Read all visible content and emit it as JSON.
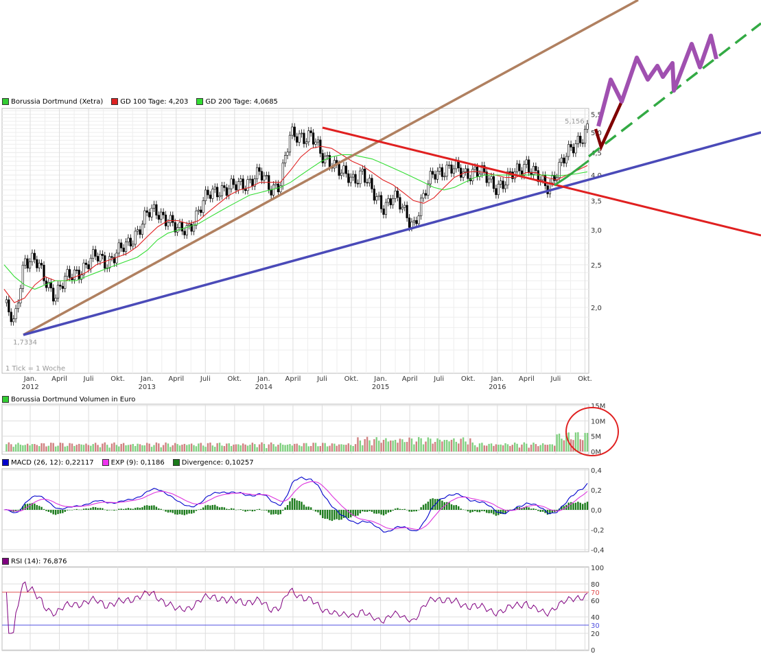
{
  "colors": {
    "price_legend": "#33cc33",
    "gd100": "#e02020",
    "gd200": "#33dd33",
    "trend_blue": "#4a4ab8",
    "trend_red": "#e02020",
    "trend_brown": "#b08060",
    "forecast_purple": "#a050b0",
    "forecast_darkred": "#800000",
    "forecast_green": "#33aa44",
    "volume_up": "#80d080",
    "volume_down": "#d08080",
    "macd": "#0000cc",
    "exp": "#dd33dd",
    "divergence": "#1a7a1a",
    "rsi": "#800080",
    "rsi_70": "#e05050",
    "rsi_30": "#5050e0",
    "circle": "#e02020",
    "grid": "#dddddd"
  },
  "price_panel": {
    "legend": [
      {
        "label": "Borussia Dortmund (Xetra)",
        "color": "#33cc33"
      },
      {
        "label": "GD 100 Tage: 4,203",
        "color": "#dd2222"
      },
      {
        "label": "GD 200 Tage: 4,0685",
        "color": "#33dd33"
      }
    ],
    "high_label": "5,156",
    "low_label": "1,7334",
    "tick_note": "1 Tick = 1 Woche",
    "y_ticks": [
      "5,5",
      "5,0",
      "4,5",
      "4,0",
      "3,5",
      "3,0",
      "2,5",
      "2,0"
    ],
    "x_ticks": [
      {
        "label": "Jan.",
        "year": "2012"
      },
      {
        "label": "April",
        "year": ""
      },
      {
        "label": "Juli",
        "year": ""
      },
      {
        "label": "Okt.",
        "year": ""
      },
      {
        "label": "Jan.",
        "year": "2013"
      },
      {
        "label": "April",
        "year": ""
      },
      {
        "label": "Juli",
        "year": ""
      },
      {
        "label": "Okt.",
        "year": ""
      },
      {
        "label": "Jan.",
        "year": "2014"
      },
      {
        "label": "April",
        "year": ""
      },
      {
        "label": "Juli",
        "year": ""
      },
      {
        "label": "Okt.",
        "year": ""
      },
      {
        "label": "Jan.",
        "year": "2015"
      },
      {
        "label": "April",
        "year": ""
      },
      {
        "label": "Juli",
        "year": ""
      },
      {
        "label": "Okt.",
        "year": ""
      },
      {
        "label": "Jan.",
        "year": "2016"
      },
      {
        "label": "April",
        "year": ""
      },
      {
        "label": "Juli",
        "year": ""
      },
      {
        "label": "Okt.",
        "year": ""
      }
    ]
  },
  "volume_panel": {
    "legend": [
      {
        "label": "Borussia Dortmund Volumen in Euro",
        "color": "#33cc33"
      }
    ],
    "y_ticks": [
      "15M",
      "10M",
      "5M",
      "0M"
    ]
  },
  "macd_panel": {
    "legend": [
      {
        "label": "MACD (26, 12): 0,22117",
        "color": "#0000cc"
      },
      {
        "label": "EXP (9): 0,1186",
        "color": "#ee33ee"
      },
      {
        "label": "Divergence: 0,10257",
        "color": "#1a7a1a"
      }
    ],
    "y_ticks": [
      "0,4",
      "0,2",
      "0,0",
      "-0,2",
      "-0,4"
    ]
  },
  "rsi_panel": {
    "legend": [
      {
        "label": "RSI (14): 76,876",
        "color": "#800080"
      }
    ],
    "y_ticks": [
      "100",
      "80",
      "70",
      "60",
      "40",
      "30",
      "20",
      "0"
    ]
  },
  "chart_data": {
    "type": "line",
    "title": "Borussia Dortmund (Xetra)",
    "x": [
      "2012-01",
      "2012-02",
      "2012-03",
      "2012-04",
      "2012-05",
      "2012-06",
      "2012-07",
      "2012-08",
      "2012-09",
      "2012-10",
      "2012-11",
      "2012-12",
      "2013-01",
      "2013-02",
      "2013-03",
      "2013-04",
      "2013-05",
      "2013-06",
      "2013-07",
      "2013-08",
      "2013-09",
      "2013-10",
      "2013-11",
      "2013-12",
      "2014-01",
      "2014-02",
      "2014-03",
      "2014-04",
      "2014-05",
      "2014-06",
      "2014-07",
      "2014-08",
      "2014-09",
      "2014-10",
      "2014-11",
      "2014-12",
      "2015-01",
      "2015-02",
      "2015-03",
      "2015-04",
      "2015-05",
      "2015-06",
      "2015-07",
      "2015-08",
      "2015-09",
      "2015-10",
      "2015-11",
      "2015-12",
      "2016-01",
      "2016-02",
      "2016-03",
      "2016-04",
      "2016-05",
      "2016-06",
      "2016-07",
      "2016-08",
      "2016-09",
      "2016-10"
    ],
    "series": [
      {
        "name": "Borussia Dortmund (Xetra)",
        "values": [
          2.05,
          1.8,
          2.6,
          2.55,
          2.3,
          2.15,
          2.3,
          2.4,
          2.5,
          2.6,
          2.55,
          2.65,
          2.75,
          3.0,
          3.25,
          3.3,
          3.2,
          2.95,
          3.05,
          3.3,
          3.6,
          3.75,
          3.7,
          3.8,
          3.9,
          4.0,
          3.75,
          3.85,
          4.9,
          4.95,
          4.9,
          4.4,
          4.35,
          4.0,
          3.9,
          4.1,
          3.6,
          3.4,
          3.6,
          3.3,
          3.1,
          3.55,
          4.05,
          4.15,
          4.1,
          4.05,
          4.1,
          3.95,
          3.8,
          3.85,
          4.05,
          4.3,
          3.95,
          3.75,
          4.1,
          4.4,
          4.8,
          5.1
        ]
      },
      {
        "name": "GD 100 Tage: 4,203",
        "values": [
          2.2,
          2.05,
          2.1,
          2.25,
          2.35,
          2.3,
          2.3,
          2.35,
          2.4,
          2.5,
          2.55,
          2.6,
          2.65,
          2.75,
          2.9,
          3.05,
          3.15,
          3.15,
          3.1,
          3.15,
          3.3,
          3.45,
          3.6,
          3.7,
          3.75,
          3.85,
          3.85,
          3.85,
          4.1,
          4.4,
          4.6,
          4.65,
          4.6,
          4.45,
          4.3,
          4.2,
          4.05,
          3.9,
          3.8,
          3.65,
          3.5,
          3.45,
          3.55,
          3.75,
          3.95,
          4.05,
          4.08,
          4.05,
          4.0,
          3.95,
          3.95,
          4.05,
          4.05,
          3.95,
          3.9,
          4.0,
          4.1,
          4.203
        ]
      },
      {
        "name": "GD 200 Tage: 4,0685",
        "values": [
          2.5,
          2.35,
          2.25,
          2.2,
          2.25,
          2.3,
          2.3,
          2.3,
          2.35,
          2.4,
          2.45,
          2.5,
          2.55,
          2.6,
          2.7,
          2.85,
          2.95,
          3.0,
          3.05,
          3.1,
          3.2,
          3.3,
          3.4,
          3.5,
          3.6,
          3.65,
          3.7,
          3.75,
          3.85,
          4.0,
          4.15,
          4.3,
          4.4,
          4.45,
          4.45,
          4.4,
          4.35,
          4.25,
          4.15,
          4.05,
          3.95,
          3.85,
          3.75,
          3.7,
          3.75,
          3.85,
          3.95,
          4.0,
          4.0,
          4.0,
          4.0,
          4.0,
          4.0,
          4.0,
          3.98,
          4.0,
          4.03,
          4.0685
        ]
      }
    ],
    "ylim": [
      1.5,
      5.7
    ],
    "y_scale": "log"
  }
}
